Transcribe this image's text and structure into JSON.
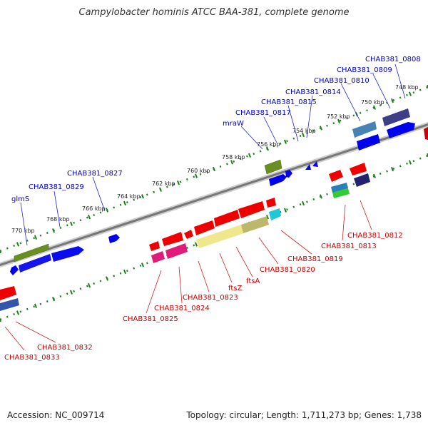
{
  "title": "Campylobacter hominis ATCC BAA-381, complete genome",
  "footer": {
    "accession": "Accession: NC_009714",
    "summary": "Topology: circular; Length: 1,711,273 bp; Genes: 1,738"
  },
  "colors": {
    "forward_label": "#0000cc",
    "reverse_label": "#cc0000",
    "backbone": "#888888",
    "tick": "#1e7f1e"
  },
  "ruler_labels": [
    "748 kbp",
    "750 kbp",
    "752 kbp",
    "754 kbp",
    "756 kbp",
    "758 kbp",
    "760 kbp",
    "762 kbp",
    "764 kbp",
    "766 kbp",
    "768 kbp",
    "770 kbp"
  ],
  "forward_genes": [
    "CHAB381_0808",
    "CHAB381_0809",
    "CHAB381_0810",
    "CHAB381_0814",
    "CHAB381_0815",
    "CHAB381_0817",
    "mraW",
    "CHAB381_0827",
    "CHAB381_0829",
    "glmS"
  ],
  "reverse_genes": [
    "CHAB381_0812",
    "CHAB381_0813",
    "CHAB381_0819",
    "CHAB381_0820",
    "ftsA",
    "ftsZ",
    "CHAB381_0823",
    "CHAB381_0824",
    "CHAB381_0825",
    "CHAB381_0832",
    "CHAB381_0833"
  ]
}
